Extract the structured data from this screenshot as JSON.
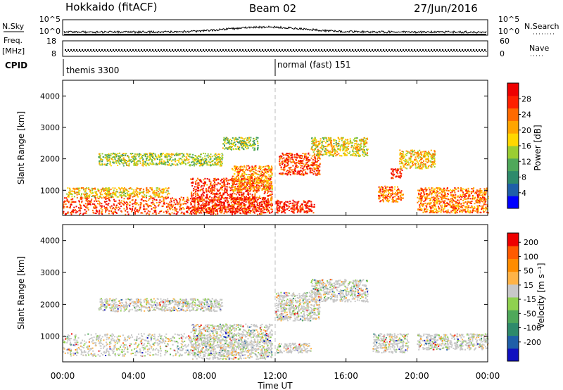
{
  "header": {
    "station": "Hokkaido (fitACF)",
    "beam": "Beam 02",
    "date": "27/Jun/2016"
  },
  "strip": {
    "nsky_label": "N.Sky",
    "nsky_ticks": [
      "10^5",
      "10^0"
    ],
    "nsearch_label": "N.Search",
    "nsearch_ticks": [
      "10^5",
      "10^0"
    ],
    "freq_label": "Freq.",
    "freq_unit": "[MHz]",
    "freq_ticks": [
      "18",
      "8"
    ],
    "nave_label": "Nave",
    "nave_ticks": [
      "60",
      "0"
    ],
    "cpid_label": "CPID",
    "cpid_segments": [
      {
        "start_hour": 0,
        "label": "themis 3300"
      },
      {
        "start_hour": 12,
        "label": "normal (fast) 151"
      }
    ]
  },
  "chart_data": [
    {
      "type": "heatmap",
      "panel": "power",
      "ylabel": "Slant Range [km]",
      "xlim": [
        0,
        24
      ],
      "ylim": [
        200,
        4500
      ],
      "yticks": [
        1000,
        2000,
        3000,
        4000
      ],
      "colorbar": {
        "label": "Power [dB]",
        "ticks": [
          "4",
          "8",
          "12",
          "16",
          "20",
          "24",
          "28"
        ],
        "colors": [
          "#0000ff",
          "#1f5fa8",
          "#2e8a6b",
          "#4fa85a",
          "#9acd32",
          "#ffd700",
          "#ffa500",
          "#ff6a00",
          "#ff2000",
          "#ee0000"
        ]
      },
      "regions": [
        {
          "x0": 0.0,
          "x1": 11.8,
          "y0": 250,
          "y1": 800,
          "level": 0.85
        },
        {
          "x0": 0.2,
          "x1": 6.0,
          "y0": 800,
          "y1": 1100,
          "level": 0.6
        },
        {
          "x0": 7.2,
          "x1": 11.8,
          "y0": 300,
          "y1": 1400,
          "level": 0.9
        },
        {
          "x0": 9.5,
          "x1": 11.8,
          "y0": 1000,
          "y1": 1800,
          "level": 0.7
        },
        {
          "x0": 12.0,
          "x1": 14.2,
          "y0": 300,
          "y1": 700,
          "level": 0.95
        },
        {
          "x0": 12.2,
          "x1": 14.5,
          "y0": 1500,
          "y1": 2200,
          "level": 0.85
        },
        {
          "x0": 14.0,
          "x1": 17.2,
          "y0": 2100,
          "y1": 2700,
          "level": 0.55
        },
        {
          "x0": 17.8,
          "x1": 19.2,
          "y0": 650,
          "y1": 1150,
          "level": 0.8
        },
        {
          "x0": 18.5,
          "x1": 19.2,
          "y0": 1400,
          "y1": 1700,
          "level": 0.95
        },
        {
          "x0": 19.0,
          "x1": 21.0,
          "y0": 1700,
          "y1": 2300,
          "level": 0.6
        },
        {
          "x0": 20.0,
          "x1": 24.0,
          "y0": 300,
          "y1": 1100,
          "level": 0.75
        },
        {
          "x0": 2.0,
          "x1": 9.0,
          "y0": 1800,
          "y1": 2200,
          "level": 0.45
        },
        {
          "x0": 9.0,
          "x1": 11.0,
          "y0": 2300,
          "y1": 2700,
          "level": 0.45
        }
      ]
    },
    {
      "type": "heatmap",
      "panel": "velocity",
      "ylabel": "Slant Range [km]",
      "xlabel": "Time UT",
      "xticks": [
        "00:00",
        "04:00",
        "08:00",
        "12:00",
        "16:00",
        "20:00",
        "00:00"
      ],
      "xlim": [
        0,
        24
      ],
      "ylim": [
        200,
        4500
      ],
      "yticks": [
        1000,
        2000,
        3000,
        4000
      ],
      "colorbar": {
        "label": "Velocity [m s⁻¹]",
        "ticks": [
          "200",
          "100",
          "50",
          "15",
          "-15",
          "-50",
          "-100",
          "-200"
        ],
        "colors": [
          "#1010c0",
          "#1f5fa8",
          "#2e8a6b",
          "#4fa85a",
          "#8fd14f",
          "#c8c8c8",
          "#ffb347",
          "#ff8c00",
          "#ff5a00",
          "#ee0000"
        ]
      },
      "regions": [
        {
          "x0": 0.0,
          "x1": 11.8,
          "y0": 400,
          "y1": 1100,
          "level": 0.5
        },
        {
          "x0": 7.2,
          "x1": 11.8,
          "y0": 300,
          "y1": 1400,
          "level": 0.5
        },
        {
          "x0": 12.0,
          "x1": 14.5,
          "y0": 1500,
          "y1": 2400,
          "level": 0.5
        },
        {
          "x0": 14.0,
          "x1": 17.2,
          "y0": 2100,
          "y1": 2800,
          "level": 0.5
        },
        {
          "x0": 12.0,
          "x1": 14.0,
          "y0": 500,
          "y1": 800,
          "level": 0.5
        },
        {
          "x0": 17.5,
          "x1": 19.5,
          "y0": 500,
          "y1": 1100,
          "level": 0.5
        },
        {
          "x0": 20.0,
          "x1": 24.0,
          "y0": 600,
          "y1": 1100,
          "level": 0.5
        },
        {
          "x0": 2.0,
          "x1": 9.0,
          "y0": 1800,
          "y1": 2200,
          "level": 0.5
        }
      ]
    }
  ]
}
